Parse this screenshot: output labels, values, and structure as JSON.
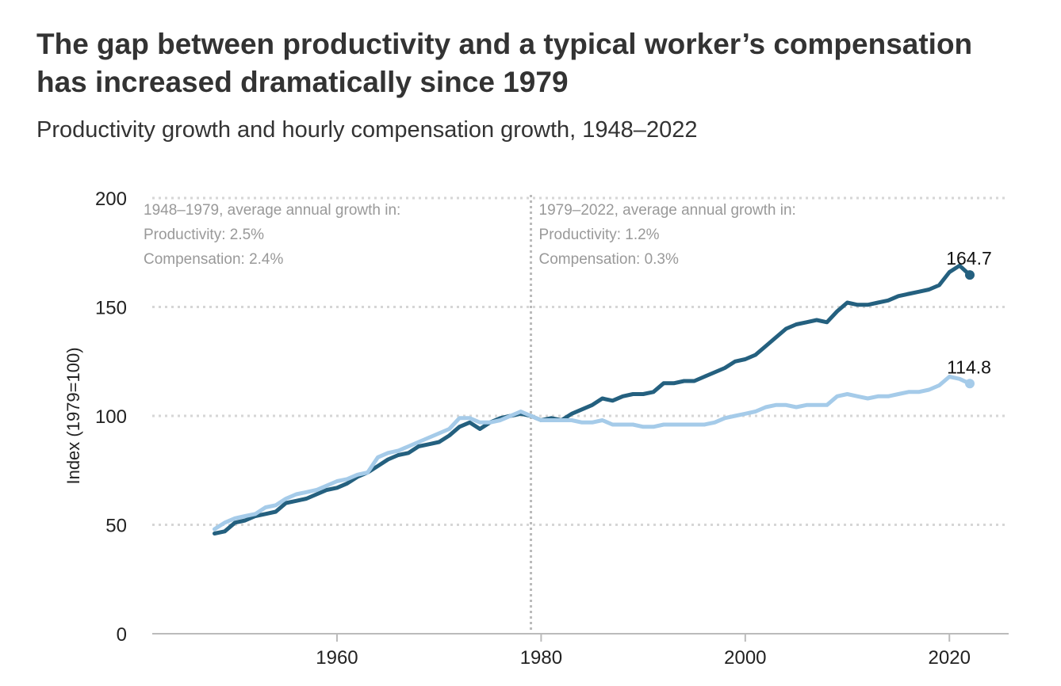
{
  "title": "The gap between productivity and a typical worker’s compensation has increased dramatically since 1979",
  "subtitle": "Productivity growth and hourly compensation growth, 1948–2022",
  "colors": {
    "productivity": "#24607f",
    "compensation": "#a5cbe9",
    "grid": "#d6d6d6",
    "annotation": "#999999",
    "axis": "#bbbbbb"
  },
  "chart_data": {
    "type": "line",
    "xlabel": "",
    "ylabel": "Index (1979=100)",
    "xlim": [
      1948,
      2022
    ],
    "ylim": [
      0,
      200
    ],
    "xticks": [
      1960,
      1980,
      2000,
      2020
    ],
    "yticks": [
      0,
      50,
      100,
      150,
      200
    ],
    "grid": true,
    "divider_year": 1979,
    "x": [
      1948,
      1949,
      1950,
      1951,
      1952,
      1953,
      1954,
      1955,
      1956,
      1957,
      1958,
      1959,
      1960,
      1961,
      1962,
      1963,
      1964,
      1965,
      1966,
      1967,
      1968,
      1969,
      1970,
      1971,
      1972,
      1973,
      1974,
      1975,
      1976,
      1977,
      1978,
      1979,
      1980,
      1981,
      1982,
      1983,
      1984,
      1985,
      1986,
      1987,
      1988,
      1989,
      1990,
      1991,
      1992,
      1993,
      1994,
      1995,
      1996,
      1997,
      1998,
      1999,
      2000,
      2001,
      2002,
      2003,
      2004,
      2005,
      2006,
      2007,
      2008,
      2009,
      2010,
      2011,
      2012,
      2013,
      2014,
      2015,
      2016,
      2017,
      2018,
      2019,
      2020,
      2021,
      2022
    ],
    "series": [
      {
        "key": "productivity",
        "end_label": "164.7",
        "values": [
          46,
          47,
          51,
          52,
          54,
          55,
          56,
          60,
          61,
          62,
          64,
          66,
          67,
          69,
          72,
          74,
          77,
          80,
          82,
          83,
          86,
          87,
          88,
          91,
          95,
          97,
          94,
          97,
          99,
          100,
          101,
          100,
          98,
          99,
          98,
          101,
          103,
          105,
          108,
          107,
          109,
          110,
          110,
          111,
          115,
          115,
          116,
          116,
          118,
          120,
          122,
          125,
          126,
          128,
          132,
          136,
          140,
          142,
          143,
          144,
          143,
          148,
          152,
          151,
          151,
          152,
          153,
          155,
          156,
          157,
          158,
          160,
          166,
          169,
          164.7
        ]
      },
      {
        "key": "compensation",
        "end_label": "114.8",
        "values": [
          48,
          51,
          53,
          54,
          55,
          58,
          59,
          62,
          64,
          65,
          66,
          68,
          70,
          71,
          73,
          74,
          81,
          83,
          84,
          86,
          88,
          90,
          92,
          94,
          99,
          99,
          97,
          97,
          98,
          100,
          102,
          100,
          98,
          98,
          98,
          98,
          97,
          97,
          98,
          96,
          96,
          96,
          95,
          95,
          96,
          96,
          96,
          96,
          96,
          97,
          99,
          100,
          101,
          102,
          104,
          105,
          105,
          104,
          105,
          105,
          105,
          109,
          110,
          109,
          108,
          109,
          109,
          110,
          111,
          111,
          112,
          114,
          118,
          117,
          114.8
        ]
      }
    ],
    "annotations": [
      {
        "lines": [
          "1948–1979, average annual growth in:",
          "Productivity: 2.5%",
          "Compensation: 2.4%"
        ]
      },
      {
        "lines": [
          "1979–2022, average annual growth in:",
          "Productivity: 1.2%",
          "Compensation: 0.3%"
        ]
      }
    ]
  }
}
